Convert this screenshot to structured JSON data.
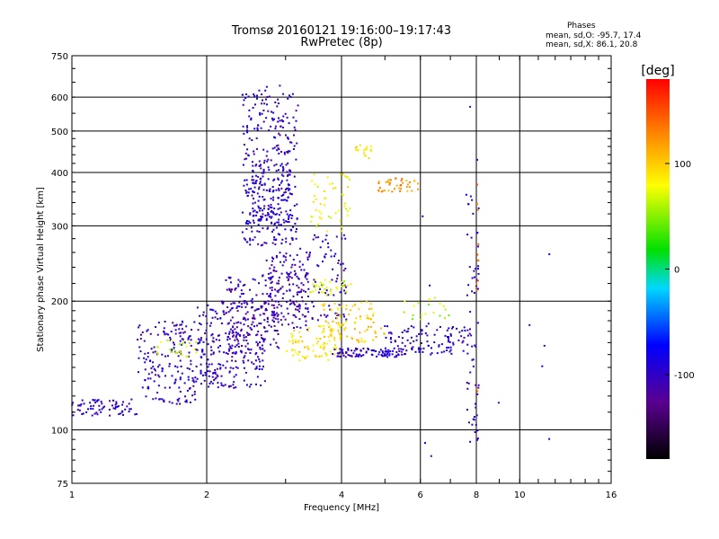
{
  "title": "Tromsø 20160121 19:16:00–19:17:43",
  "subtitle": "RwPretec (8p)",
  "stats": {
    "header": "Phases",
    "line_o": "mean, sd,O: -95.7, 17.4",
    "line_x": "mean, sd,X: 86.1, 20.8"
  },
  "chart_data": {
    "type": "scatter",
    "xlabel": "Frequency [MHz]",
    "ylabel": "Stationary phase Virtual Height [km]",
    "x_scale": "log",
    "y_scale": "log",
    "xlim": [
      1,
      16
    ],
    "ylim": [
      75,
      750
    ],
    "x_ticks": [
      1,
      2,
      4,
      6,
      8,
      10,
      16
    ],
    "x_tick_labels": [
      "1",
      "2",
      "4",
      "6",
      "8",
      "10",
      "16"
    ],
    "y_ticks": [
      75,
      100,
      200,
      300,
      400,
      500,
      600,
      750
    ],
    "y_tick_labels": [
      "75",
      "100",
      "200",
      "300",
      "400",
      "500",
      "600",
      "750"
    ],
    "grid": true,
    "colorbar": {
      "label": "[deg]",
      "range": [
        -180,
        180
      ],
      "ticks": [
        100,
        0,
        -100
      ],
      "tick_labels": [
        "100",
        "0",
        "-100"
      ],
      "colors": [
        "#000000",
        "#5a0090",
        "#0000ff",
        "#00d8ff",
        "#00e000",
        "#ffff00",
        "#ff8c00",
        "#ff0000"
      ]
    },
    "clusters": [
      {
        "x": [
          1.0,
          1.4
        ],
        "y": [
          108,
          118
        ],
        "phase": -100,
        "n": 70
      },
      {
        "x": [
          1.4,
          1.9
        ],
        "y": [
          115,
          180
        ],
        "phase": -100,
        "n": 180
      },
      {
        "x": [
          1.55,
          1.9
        ],
        "y": [
          148,
          162
        ],
        "phase": 60,
        "n": 25
      },
      {
        "x": [
          1.9,
          2.7
        ],
        "y": [
          125,
          200
        ],
        "phase": -100,
        "n": 260
      },
      {
        "x": [
          2.2,
          2.9
        ],
        "y": [
          150,
          230
        ],
        "phase": -110,
        "n": 140
      },
      {
        "x": [
          2.4,
          3.2
        ],
        "y": [
          270,
          640
        ],
        "phase": -100,
        "n": 300
      },
      {
        "x": [
          2.5,
          3.1
        ],
        "y": [
          300,
          420
        ],
        "phase": -95,
        "n": 120
      },
      {
        "x": [
          2.7,
          3.4
        ],
        "y": [
          170,
          260
        ],
        "phase": -110,
        "n": 160
      },
      {
        "x": [
          3.2,
          4.1
        ],
        "y": [
          180,
          290
        ],
        "phase": -100,
        "n": 90
      },
      {
        "x": [
          3.4,
          4.2
        ],
        "y": [
          290,
          400
        ],
        "phase": 80,
        "n": 50
      },
      {
        "x": [
          3.4,
          4.2
        ],
        "y": [
          205,
          225
        ],
        "phase": 70,
        "n": 35
      },
      {
        "x": [
          3.0,
          4.0
        ],
        "y": [
          145,
          175
        ],
        "phase": 90,
        "n": 80
      },
      {
        "x": [
          3.6,
          5.0
        ],
        "y": [
          160,
          200
        ],
        "phase": 95,
        "n": 90
      },
      {
        "x": [
          3.8,
          5.5
        ],
        "y": [
          148,
          155
        ],
        "phase": -100,
        "n": 90
      },
      {
        "x": [
          4.8,
          6.0
        ],
        "y": [
          360,
          390
        ],
        "phase": 120,
        "n": 40
      },
      {
        "x": [
          4.3,
          4.7
        ],
        "y": [
          430,
          470
        ],
        "phase": 85,
        "n": 18
      },
      {
        "x": [
          5.0,
          7.8
        ],
        "y": [
          150,
          175
        ],
        "phase": -95,
        "n": 110
      },
      {
        "x": [
          5.5,
          7.0
        ],
        "y": [
          180,
          205
        ],
        "phase": 60,
        "n": 20
      },
      {
        "x": [
          7.6,
          8.1
        ],
        "y": [
          90,
          380
        ],
        "phase": -100,
        "n": 60
      },
      {
        "x": [
          8.0,
          8.1
        ],
        "y": [
          90,
          560
        ],
        "phase": 140,
        "n": 12
      },
      {
        "x": [
          6.0,
          12.5
        ],
        "y": [
          85,
          600
        ],
        "phase": -100,
        "n": 14
      }
    ]
  }
}
